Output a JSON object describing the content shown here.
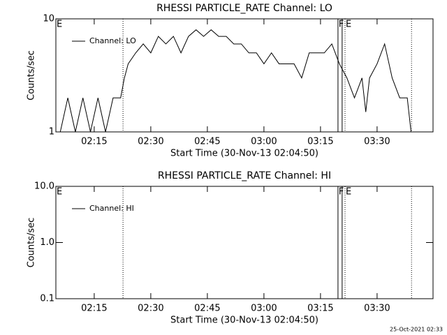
{
  "chart_data": [
    {
      "type": "line",
      "title": "RHESSI PARTICLE_RATE Channel: LO",
      "xlabel": "Start Time (30-Nov-13 02:04:50)",
      "ylabel": "Counts/sec",
      "xlim": [
        "02:04:50",
        "03:44:50"
      ],
      "xticks": [
        "02:15",
        "02:30",
        "02:45",
        "03:00",
        "03:15",
        "03:30"
      ],
      "ylim": [
        1,
        10
      ],
      "yticks": [
        1,
        10
      ],
      "log_y": true,
      "legend": "upper left",
      "vlines": [
        {
          "x": "02:22:38",
          "style": "dotted"
        },
        {
          "x": "03:19:38",
          "style": "solid"
        },
        {
          "x": "03:20:44",
          "style": "solid"
        },
        {
          "x": "03:21:30",
          "style": "dotted"
        },
        {
          "x": "03:39:08",
          "style": "dotted"
        }
      ],
      "annotations": [
        {
          "x": "02:04:50",
          "label": "E"
        },
        {
          "x": "03:19:38",
          "label": "F"
        },
        {
          "x": "03:21:30",
          "label": "E"
        }
      ],
      "series": [
        {
          "name": "Channel: LO",
          "color": "#000000",
          "x": [
            "02:06",
            "02:08",
            "02:10",
            "02:12",
            "02:14",
            "02:16",
            "02:18",
            "02:20",
            "02:22",
            "02:23",
            "02:24",
            "02:26",
            "02:28",
            "02:30",
            "02:32",
            "02:34",
            "02:36",
            "02:38",
            "02:40",
            "02:42",
            "02:44",
            "02:46",
            "02:48",
            "02:50",
            "02:52",
            "02:54",
            "02:56",
            "02:58",
            "03:00",
            "03:02",
            "03:04",
            "03:06",
            "03:08",
            "03:10",
            "03:12",
            "03:14",
            "03:16",
            "03:18",
            "03:20",
            "03:22",
            "03:24",
            "03:26",
            "03:27",
            "03:28",
            "03:30",
            "03:32",
            "03:34",
            "03:36",
            "03:38",
            "03:39"
          ],
          "values": [
            1,
            2,
            1,
            2,
            1,
            2,
            1,
            2,
            2,
            3,
            4,
            5,
            6,
            5,
            7,
            6,
            7,
            5,
            7,
            8,
            7,
            8,
            7,
            7,
            6,
            6,
            5,
            5,
            4,
            5,
            4,
            4,
            4,
            3,
            5,
            5,
            5,
            6,
            4,
            3,
            2,
            3,
            1.5,
            3,
            4,
            6,
            3,
            2,
            2,
            1
          ]
        }
      ]
    },
    {
      "type": "line",
      "title": "RHESSI PARTICLE_RATE Channel: HI",
      "xlabel": "Start Time (30-Nov-13 02:04:50)",
      "ylabel": "Counts/sec",
      "xlim": [
        "02:04:50",
        "03:44:50"
      ],
      "xticks": [
        "02:15",
        "02:30",
        "02:45",
        "03:00",
        "03:15",
        "03:30"
      ],
      "ylim": [
        0.1,
        10
      ],
      "yticks": [
        0.1,
        {
          "value": 1,
          "label": "1.0"
        },
        {
          "value": 10,
          "label": "10.0"
        }
      ],
      "log_y": true,
      "legend": "upper left",
      "vlines": [
        {
          "x": "02:22:38",
          "style": "dotted"
        },
        {
          "x": "03:19:38",
          "style": "solid"
        },
        {
          "x": "03:20:44",
          "style": "solid"
        },
        {
          "x": "03:21:30",
          "style": "dotted"
        },
        {
          "x": "03:39:08",
          "style": "dotted"
        }
      ],
      "annotations": [
        {
          "x": "02:04:50",
          "label": "E"
        },
        {
          "x": "03:19:38",
          "label": "F"
        },
        {
          "x": "03:21:30",
          "label": "E"
        }
      ],
      "series": [
        {
          "name": "Channel: HI",
          "color": "#000000",
          "x": [],
          "values": []
        }
      ]
    }
  ],
  "timestamp": "25-Oct-2021 02:33"
}
